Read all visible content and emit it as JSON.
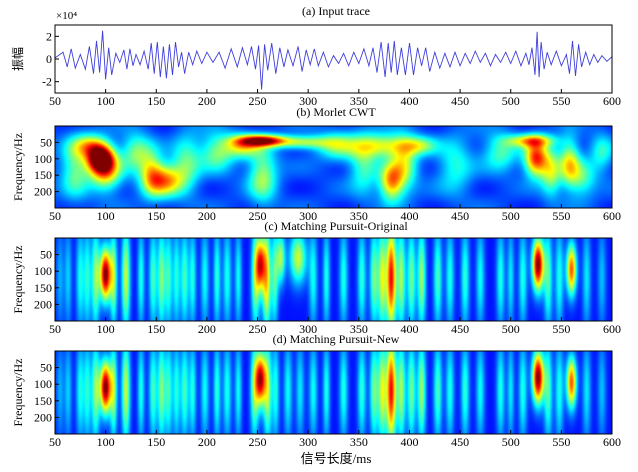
{
  "figure": {
    "xlabel": "信号长度/ms"
  },
  "chart_data": [
    {
      "type": "line",
      "title": "(a) Input trace",
      "ylabel": "振幅",
      "y_multiplier": "×10⁴",
      "xlim": [
        50,
        600
      ],
      "ylim": [
        -3,
        3
      ],
      "xticks": [
        50,
        100,
        150,
        200,
        250,
        300,
        350,
        400,
        450,
        500,
        550,
        600
      ],
      "yticks": [
        -2,
        0,
        2
      ],
      "line_color": "#3f3fdc",
      "series": [
        {
          "x": [
            50,
            58,
            62,
            66,
            70,
            75,
            80,
            84,
            88,
            91,
            94,
            97,
            100,
            103,
            106,
            110,
            114,
            118,
            121,
            124,
            127,
            130,
            134,
            138,
            142,
            145,
            148,
            151,
            154,
            157,
            160,
            163,
            166,
            169,
            172,
            175,
            178,
            182,
            186,
            190,
            195,
            200,
            206,
            212,
            218,
            224,
            230,
            235,
            240,
            244,
            248,
            251,
            254,
            257,
            260,
            264,
            268,
            272,
            276,
            280,
            285,
            290,
            294,
            298,
            302,
            306,
            310,
            315,
            320,
            325,
            330,
            335,
            340,
            345,
            350,
            355,
            360,
            364,
            368,
            372,
            376,
            379,
            382,
            385,
            388,
            392,
            396,
            400,
            404,
            408,
            412,
            416,
            420,
            425,
            430,
            435,
            440,
            445,
            450,
            455,
            460,
            465,
            470,
            475,
            480,
            485,
            490,
            495,
            500,
            505,
            510,
            515,
            518,
            521,
            524,
            526,
            528,
            530,
            533,
            536,
            540,
            545,
            550,
            555,
            558,
            561,
            564,
            567,
            570,
            574,
            578,
            582,
            586,
            590,
            595,
            600
          ],
          "y": [
            0.1,
            0.6,
            -0.7,
            0.9,
            -0.8,
            0.4,
            -0.9,
            1.1,
            -1.3,
            1.6,
            -1.2,
            2.5,
            -1.8,
            1.0,
            -1.4,
            0.5,
            -0.3,
            0.8,
            -0.9,
            0.9,
            -0.6,
            0.4,
            -0.5,
            0.7,
            -0.9,
            1.4,
            -1.3,
            1.5,
            -1.6,
            1.1,
            -1.7,
            1.3,
            -1.4,
            1.5,
            -0.7,
            0.6,
            -1.3,
            0.6,
            -0.5,
            0.7,
            -0.4,
            0.6,
            -0.3,
            0.6,
            -0.8,
            0.9,
            -0.7,
            1.0,
            -0.5,
            1.1,
            -0.9,
            1.2,
            -2.7,
            1.3,
            -1.0,
            1.4,
            -1.3,
            1.0,
            -0.7,
            0.8,
            -0.6,
            1.1,
            -1.1,
            0.8,
            -0.5,
            0.9,
            -0.6,
            0.6,
            -0.7,
            0.3,
            -0.4,
            0.5,
            -0.6,
            0.6,
            -0.4,
            0.9,
            -0.6,
            1.0,
            -1.2,
            1.5,
            -1.6,
            1.4,
            -1.2,
            1.6,
            -1.4,
            1.0,
            -1.4,
            1.4,
            -1.4,
            1.0,
            -0.6,
            1.0,
            -1.1,
            0.6,
            -0.8,
            0.5,
            -0.7,
            0.6,
            -0.6,
            0.5,
            -0.4,
            0.7,
            -0.3,
            0.5,
            -0.6,
            0.4,
            -0.3,
            0.6,
            -0.4,
            0.7,
            -0.6,
            0.5,
            -0.5,
            1.0,
            -1.4,
            2.4,
            -1.6,
            1.5,
            -0.9,
            0.6,
            -0.5,
            0.7,
            -0.6,
            0.4,
            -1.3,
            1.6,
            -1.5,
            1.3,
            -0.7,
            0.6,
            -0.5,
            0.4,
            -0.3,
            0.3,
            -0.2,
            0.2
          ]
        }
      ]
    },
    {
      "type": "heatmap",
      "title": "(b) Morlet CWT",
      "ylabel": "Frequency/Hz",
      "xlim": [
        50,
        600
      ],
      "ylim": [
        0,
        250
      ],
      "y_inverted": true,
      "xticks": [
        50,
        100,
        150,
        200,
        250,
        300,
        350,
        400,
        450,
        500,
        550,
        600
      ],
      "yticks": [
        50,
        100,
        150,
        200
      ],
      "colormap": "jet",
      "blobs": [
        {
          "x": 95,
          "y": 100,
          "sx": 9,
          "sy": 28,
          "v": 1.0
        },
        {
          "x": 100,
          "y": 140,
          "sx": 11,
          "sy": 40,
          "v": 0.55
        },
        {
          "x": 85,
          "y": 60,
          "sx": 12,
          "sy": 25,
          "v": 0.45
        },
        {
          "x": 70,
          "y": 130,
          "sx": 10,
          "sy": 60,
          "v": 0.35
        },
        {
          "x": 130,
          "y": 80,
          "sx": 10,
          "sy": 40,
          "v": 0.35
        },
        {
          "x": 158,
          "y": 165,
          "sx": 13,
          "sy": 35,
          "v": 0.6
        },
        {
          "x": 145,
          "y": 140,
          "sx": 8,
          "sy": 50,
          "v": 0.35
        },
        {
          "x": 180,
          "y": 110,
          "sx": 10,
          "sy": 60,
          "v": 0.3
        },
        {
          "x": 210,
          "y": 80,
          "sx": 12,
          "sy": 40,
          "v": 0.35
        },
        {
          "x": 235,
          "y": 60,
          "sx": 12,
          "sy": 25,
          "v": 0.45
        },
        {
          "x": 255,
          "y": 45,
          "sx": 16,
          "sy": 12,
          "v": 0.85
        },
        {
          "x": 255,
          "y": 150,
          "sx": 10,
          "sy": 60,
          "v": 0.4
        },
        {
          "x": 295,
          "y": 50,
          "sx": 20,
          "sy": 14,
          "v": 0.4
        },
        {
          "x": 330,
          "y": 60,
          "sx": 15,
          "sy": 30,
          "v": 0.35
        },
        {
          "x": 355,
          "y": 120,
          "sx": 10,
          "sy": 60,
          "v": 0.3
        },
        {
          "x": 375,
          "y": 60,
          "sx": 18,
          "sy": 25,
          "v": 0.45
        },
        {
          "x": 382,
          "y": 170,
          "sx": 8,
          "sy": 40,
          "v": 0.6
        },
        {
          "x": 395,
          "y": 120,
          "sx": 9,
          "sy": 55,
          "v": 0.4
        },
        {
          "x": 410,
          "y": 60,
          "sx": 12,
          "sy": 20,
          "v": 0.35
        },
        {
          "x": 445,
          "y": 120,
          "sx": 12,
          "sy": 60,
          "v": 0.25
        },
        {
          "x": 490,
          "y": 80,
          "sx": 12,
          "sy": 40,
          "v": 0.3
        },
        {
          "x": 525,
          "y": 100,
          "sx": 8,
          "sy": 38,
          "v": 0.75
        },
        {
          "x": 520,
          "y": 45,
          "sx": 16,
          "sy": 14,
          "v": 0.5
        },
        {
          "x": 540,
          "y": 140,
          "sx": 7,
          "sy": 50,
          "v": 0.4
        },
        {
          "x": 558,
          "y": 110,
          "sx": 7,
          "sy": 50,
          "v": 0.45
        },
        {
          "x": 570,
          "y": 160,
          "sx": 10,
          "sy": 40,
          "v": 0.3
        },
        {
          "x": 590,
          "y": 80,
          "sx": 8,
          "sy": 40,
          "v": 0.25
        }
      ]
    },
    {
      "type": "heatmap",
      "title": "(c) Matching Pursuit-Original",
      "ylabel": "Frequency/Hz",
      "xlim": [
        50,
        600
      ],
      "ylim": [
        0,
        250
      ],
      "y_inverted": true,
      "xticks": [
        50,
        100,
        150,
        200,
        250,
        300,
        350,
        400,
        450,
        500,
        550,
        600
      ],
      "yticks": [
        50,
        100,
        150,
        200
      ],
      "colormap": "jet",
      "atoms": [
        {
          "x": 55,
          "w": 3,
          "v": 0.18
        },
        {
          "x": 63,
          "w": 2.5,
          "v": 0.22
        },
        {
          "x": 75,
          "w": 3,
          "v": 0.3
        },
        {
          "x": 82,
          "w": 2.5,
          "v": 0.3
        },
        {
          "x": 90,
          "w": 3,
          "v": 0.42
        },
        {
          "x": 100,
          "w": 4,
          "v": 1.0,
          "c": 110
        },
        {
          "x": 108,
          "w": 2.5,
          "v": 0.4
        },
        {
          "x": 120,
          "w": 3,
          "v": 0.5
        },
        {
          "x": 135,
          "w": 2.5,
          "v": 0.3
        },
        {
          "x": 147,
          "w": 3,
          "v": 0.35
        },
        {
          "x": 155,
          "w": 2.5,
          "v": 0.4
        },
        {
          "x": 162,
          "w": 3,
          "v": 0.35
        },
        {
          "x": 170,
          "w": 2.5,
          "v": 0.3
        },
        {
          "x": 178,
          "w": 3,
          "v": 0.35
        },
        {
          "x": 186,
          "w": 2.5,
          "v": 0.3
        },
        {
          "x": 198,
          "w": 3,
          "v": 0.28
        },
        {
          "x": 210,
          "w": 2.5,
          "v": 0.32
        },
        {
          "x": 220,
          "w": 3,
          "v": 0.3
        },
        {
          "x": 231,
          "w": 2.5,
          "v": 0.28
        },
        {
          "x": 248,
          "w": 3,
          "v": 0.45
        },
        {
          "x": 253,
          "w": 3,
          "v": 0.75,
          "c": 80
        },
        {
          "x": 259,
          "w": 3,
          "v": 0.6
        },
        {
          "x": 267,
          "w": 2.5,
          "v": 0.35
        },
        {
          "x": 273,
          "w": 3,
          "v": 0.45,
          "c": 60
        },
        {
          "x": 290,
          "w": 6,
          "v": 0.5,
          "c": 60
        },
        {
          "x": 305,
          "w": 3,
          "v": 0.28
        },
        {
          "x": 318,
          "w": 2.5,
          "v": 0.3
        },
        {
          "x": 335,
          "w": 3,
          "v": 0.3
        },
        {
          "x": 353,
          "w": 3,
          "v": 0.32
        },
        {
          "x": 365,
          "w": 3,
          "v": 0.4
        },
        {
          "x": 373,
          "w": 3,
          "v": 0.5
        },
        {
          "x": 382,
          "w": 3.5,
          "v": 0.85
        },
        {
          "x": 392,
          "w": 3,
          "v": 0.45
        },
        {
          "x": 402,
          "w": 3,
          "v": 0.4
        },
        {
          "x": 412,
          "w": 3,
          "v": 0.45
        },
        {
          "x": 428,
          "w": 3,
          "v": 0.35
        },
        {
          "x": 440,
          "w": 3,
          "v": 0.3
        },
        {
          "x": 455,
          "w": 3,
          "v": 0.32
        },
        {
          "x": 470,
          "w": 3,
          "v": 0.28
        },
        {
          "x": 490,
          "w": 3,
          "v": 0.3
        },
        {
          "x": 500,
          "w": 2.5,
          "v": 0.25
        },
        {
          "x": 512,
          "w": 3,
          "v": 0.3
        },
        {
          "x": 527,
          "w": 4,
          "v": 1.0,
          "c": 80
        },
        {
          "x": 537,
          "w": 3,
          "v": 0.35
        },
        {
          "x": 548,
          "w": 3,
          "v": 0.3
        },
        {
          "x": 560,
          "w": 3.5,
          "v": 0.75,
          "c": 95
        },
        {
          "x": 575,
          "w": 3,
          "v": 0.25
        },
        {
          "x": 590,
          "w": 3,
          "v": 0.2
        }
      ]
    },
    {
      "type": "heatmap",
      "title": "(d) Matching Pursuit-New",
      "ylabel": "Frequency/Hz",
      "xlim": [
        50,
        600
      ],
      "ylim": [
        0,
        250
      ],
      "y_inverted": true,
      "xticks": [
        50,
        100,
        150,
        200,
        250,
        300,
        350,
        400,
        450,
        500,
        550,
        600
      ],
      "yticks": [
        50,
        100,
        150,
        200
      ],
      "colormap": "jet",
      "atoms": [
        {
          "x": 55,
          "w": 3,
          "v": 0.18
        },
        {
          "x": 63,
          "w": 2.5,
          "v": 0.22
        },
        {
          "x": 75,
          "w": 3,
          "v": 0.3
        },
        {
          "x": 82,
          "w": 2.5,
          "v": 0.3
        },
        {
          "x": 90,
          "w": 3,
          "v": 0.42
        },
        {
          "x": 100,
          "w": 4,
          "v": 1.0,
          "c": 110
        },
        {
          "x": 108,
          "w": 2.5,
          "v": 0.4
        },
        {
          "x": 120,
          "w": 3,
          "v": 0.5
        },
        {
          "x": 135,
          "w": 2.5,
          "v": 0.3
        },
        {
          "x": 147,
          "w": 3,
          "v": 0.35
        },
        {
          "x": 155,
          "w": 2.5,
          "v": 0.4
        },
        {
          "x": 162,
          "w": 3,
          "v": 0.35
        },
        {
          "x": 170,
          "w": 2.5,
          "v": 0.3
        },
        {
          "x": 178,
          "w": 3,
          "v": 0.35
        },
        {
          "x": 186,
          "w": 2.5,
          "v": 0.3
        },
        {
          "x": 198,
          "w": 3,
          "v": 0.28
        },
        {
          "x": 210,
          "w": 2.5,
          "v": 0.32
        },
        {
          "x": 220,
          "w": 3,
          "v": 0.3
        },
        {
          "x": 231,
          "w": 2.5,
          "v": 0.28
        },
        {
          "x": 247,
          "w": 3,
          "v": 0.4
        },
        {
          "x": 253,
          "w": 3.5,
          "v": 0.9,
          "c": 85
        },
        {
          "x": 260,
          "w": 3,
          "v": 0.45
        },
        {
          "x": 268,
          "w": 2.5,
          "v": 0.3
        },
        {
          "x": 280,
          "w": 3,
          "v": 0.28
        },
        {
          "x": 292,
          "w": 3,
          "v": 0.25
        },
        {
          "x": 305,
          "w": 3,
          "v": 0.28
        },
        {
          "x": 318,
          "w": 2.5,
          "v": 0.3
        },
        {
          "x": 335,
          "w": 3,
          "v": 0.3
        },
        {
          "x": 353,
          "w": 3,
          "v": 0.32
        },
        {
          "x": 365,
          "w": 3,
          "v": 0.4
        },
        {
          "x": 373,
          "w": 3,
          "v": 0.5
        },
        {
          "x": 382,
          "w": 3.5,
          "v": 0.85
        },
        {
          "x": 392,
          "w": 3,
          "v": 0.45
        },
        {
          "x": 402,
          "w": 3,
          "v": 0.4
        },
        {
          "x": 412,
          "w": 3,
          "v": 0.45
        },
        {
          "x": 428,
          "w": 3,
          "v": 0.35
        },
        {
          "x": 440,
          "w": 3,
          "v": 0.3
        },
        {
          "x": 455,
          "w": 3,
          "v": 0.32
        },
        {
          "x": 470,
          "w": 3,
          "v": 0.28
        },
        {
          "x": 490,
          "w": 3,
          "v": 0.3
        },
        {
          "x": 500,
          "w": 2.5,
          "v": 0.25
        },
        {
          "x": 512,
          "w": 3,
          "v": 0.3
        },
        {
          "x": 527,
          "w": 4,
          "v": 1.0,
          "c": 80
        },
        {
          "x": 537,
          "w": 3,
          "v": 0.35
        },
        {
          "x": 548,
          "w": 3,
          "v": 0.3
        },
        {
          "x": 560,
          "w": 3.5,
          "v": 0.75,
          "c": 95
        },
        {
          "x": 575,
          "w": 3,
          "v": 0.25
        },
        {
          "x": 590,
          "w": 3,
          "v": 0.2
        }
      ]
    }
  ]
}
